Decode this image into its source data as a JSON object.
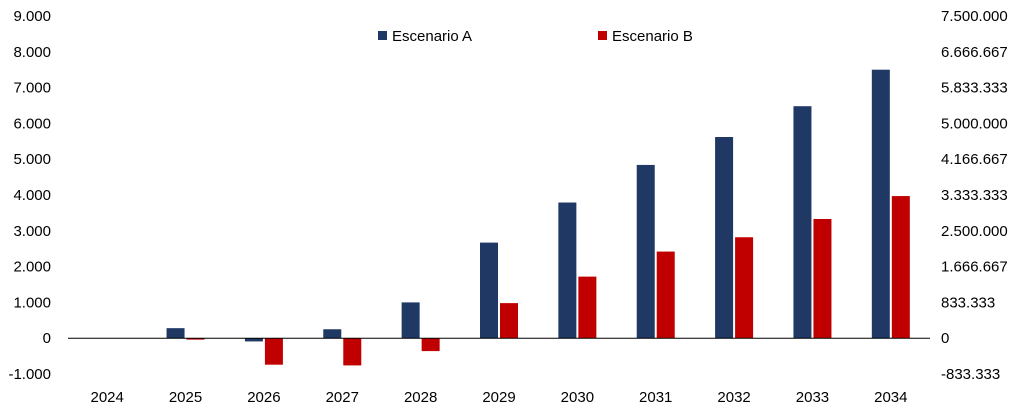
{
  "chart_data": {
    "type": "bar",
    "categories": [
      "2024",
      "2025",
      "2026",
      "2027",
      "2028",
      "2029",
      "2030",
      "2031",
      "2032",
      "2033",
      "2034"
    ],
    "series": [
      {
        "name": "Escenario A",
        "color": "#1f3864",
        "axis": "left",
        "values": [
          0,
          280,
          -90,
          250,
          1000,
          2670,
          3790,
          4840,
          5620,
          6480,
          7500
        ]
      },
      {
        "name": "Escenario B",
        "color": "#c00000",
        "axis": "left",
        "values": [
          0,
          -40,
          -740,
          -760,
          -360,
          980,
          1720,
          2420,
          2820,
          3330,
          3970
        ]
      }
    ],
    "y_left": {
      "lim": [
        -1000,
        9000
      ],
      "ticks": [
        -1000,
        0,
        1000,
        2000,
        3000,
        4000,
        5000,
        6000,
        7000,
        8000,
        9000
      ],
      "tick_labels": [
        "-1.000",
        "0",
        "1.000",
        "2.000",
        "3.000",
        "4.000",
        "5.000",
        "6.000",
        "7.000",
        "8.000",
        "9.000"
      ]
    },
    "y_right": {
      "lim": [
        -833333,
        7500000
      ],
      "tick_labels": [
        "-833.333",
        "0",
        "833.333",
        "1.666.667",
        "2.500.000",
        "3.333.333",
        "4.166.667",
        "5.000.000",
        "5.833.333",
        "6.666.667",
        "7.500.000"
      ]
    },
    "title": "",
    "xlabel": "",
    "ylabel": "",
    "grid": false,
    "legend_position": "top-center"
  }
}
